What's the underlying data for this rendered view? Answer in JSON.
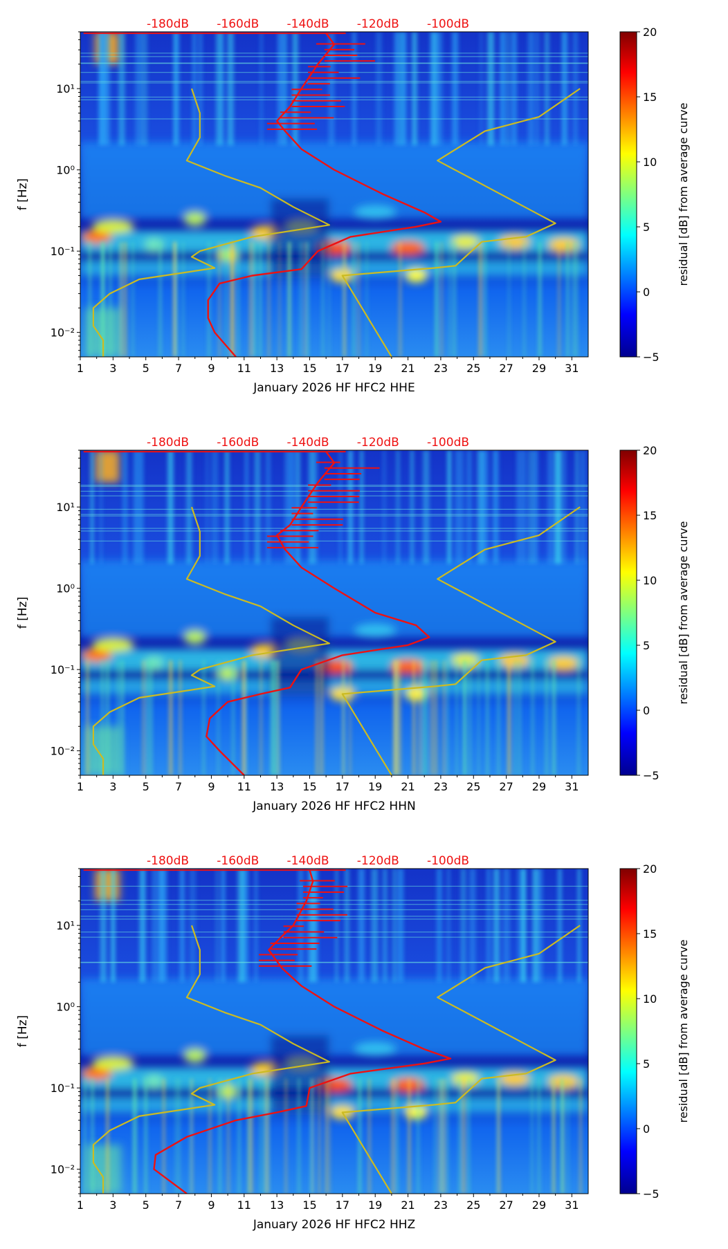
{
  "chart_data": [
    {
      "type": "heatmap",
      "channel": "HHE",
      "title": "",
      "xlabel": "January 2026 HF HFC2  HHE",
      "ylabel": "f [Hz]",
      "x_ticks": [
        1,
        3,
        5,
        7,
        9,
        11,
        13,
        15,
        17,
        19,
        21,
        23,
        25,
        27,
        29,
        31
      ],
      "xlim": [
        1,
        32
      ],
      "y_ticks": [
        0.01,
        0.1,
        1,
        10
      ],
      "y_tick_labels": [
        "10⁻²",
        "10⁻¹",
        "10⁰",
        "10¹"
      ],
      "ylim": [
        0.005,
        50
      ],
      "top_axis_ticks": [
        -180,
        -160,
        -140,
        -120,
        -100
      ],
      "top_axis_labels": [
        "-180dB",
        "-160dB",
        "-140dB",
        "-120dB",
        "-100dB"
      ],
      "colorbar": {
        "label": "residual [dB] from average curve",
        "min": -5,
        "max": 20,
        "ticks": [
          -5,
          0,
          5,
          10,
          15,
          20
        ],
        "tick_labels": [
          "−5",
          "0",
          "5",
          "10",
          "15",
          "20"
        ]
      },
      "series": [
        {
          "name": "average PSD",
          "color": "#ee1111",
          "points": [
            [
              10.5,
              0.005
            ],
            [
              9.2,
              0.01
            ],
            [
              8.8,
              0.015
            ],
            [
              8.8,
              0.025
            ],
            [
              9.5,
              0.04
            ],
            [
              11.5,
              0.05
            ],
            [
              14.5,
              0.06
            ],
            [
              15.5,
              0.1
            ],
            [
              17.5,
              0.15
            ],
            [
              21.5,
              0.2
            ],
            [
              23.0,
              0.23
            ],
            [
              22.0,
              0.3
            ],
            [
              19.5,
              0.5
            ],
            [
              16.5,
              1.0
            ],
            [
              14.5,
              1.8
            ],
            [
              13.5,
              3.0
            ],
            [
              13.0,
              4.0
            ],
            [
              13.8,
              6.0
            ],
            [
              14.5,
              10.0
            ],
            [
              15.5,
              20.0
            ],
            [
              16.5,
              35.0
            ],
            [
              16.0,
              48.0
            ]
          ]
        },
        {
          "name": "NLNM",
          "color": "#ccbb22",
          "points": [
            [
              2.4,
              0.005
            ],
            [
              2.4,
              0.008
            ],
            [
              1.8,
              0.012
            ],
            [
              1.8,
              0.02
            ],
            [
              2.8,
              0.03
            ],
            [
              4.6,
              0.045
            ],
            [
              9.2,
              0.062
            ],
            [
              7.8,
              0.085
            ],
            [
              8.3,
              0.1
            ],
            [
              11.5,
              0.15
            ],
            [
              16.2,
              0.21
            ],
            [
              14.0,
              0.35
            ],
            [
              12.0,
              0.6
            ],
            [
              9.8,
              0.85
            ],
            [
              7.5,
              1.3
            ],
            [
              8.3,
              2.5
            ],
            [
              8.3,
              5.0
            ],
            [
              7.8,
              10.0
            ]
          ]
        },
        {
          "name": "NHNM",
          "color": "#ccbb22",
          "points": [
            [
              20.0,
              0.005
            ],
            [
              17.0,
              0.05
            ],
            [
              22.6,
              0.062
            ],
            [
              23.9,
              0.066
            ],
            [
              25.5,
              0.13
            ],
            [
              28.2,
              0.15
            ],
            [
              30.0,
              0.22
            ],
            [
              22.8,
              1.3
            ],
            [
              25.7,
              3.0
            ],
            [
              29.0,
              4.5
            ],
            [
              31.5,
              10.0
            ]
          ]
        }
      ]
    },
    {
      "type": "heatmap",
      "channel": "HHN",
      "title": "",
      "xlabel": "January 2026 HF HFC2  HHN",
      "ylabel": "f [Hz]",
      "x_ticks": [
        1,
        3,
        5,
        7,
        9,
        11,
        13,
        15,
        17,
        19,
        21,
        23,
        25,
        27,
        29,
        31
      ],
      "xlim": [
        1,
        32
      ],
      "y_ticks": [
        0.01,
        0.1,
        1,
        10
      ],
      "y_tick_labels": [
        "10⁻²",
        "10⁻¹",
        "10⁰",
        "10¹"
      ],
      "ylim": [
        0.005,
        50
      ],
      "top_axis_ticks": [
        -180,
        -160,
        -140,
        -120,
        -100
      ],
      "top_axis_labels": [
        "-180dB",
        "-160dB",
        "-140dB",
        "-120dB",
        "-100dB"
      ],
      "colorbar": {
        "label": "residual [dB] from average curve",
        "min": -5,
        "max": 20,
        "ticks": [
          -5,
          0,
          5,
          10,
          15,
          20
        ],
        "tick_labels": [
          "−5",
          "0",
          "5",
          "10",
          "15",
          "20"
        ]
      },
      "series": [
        {
          "name": "average PSD",
          "color": "#ee1111",
          "points": [
            [
              11.0,
              0.005
            ],
            [
              9.5,
              0.01
            ],
            [
              8.7,
              0.015
            ],
            [
              8.9,
              0.025
            ],
            [
              10.0,
              0.04
            ],
            [
              12.0,
              0.05
            ],
            [
              13.8,
              0.06
            ],
            [
              14.5,
              0.1
            ],
            [
              17.0,
              0.15
            ],
            [
              21.0,
              0.2
            ],
            [
              22.3,
              0.25
            ],
            [
              21.5,
              0.35
            ],
            [
              19.0,
              0.5
            ],
            [
              16.5,
              1.0
            ],
            [
              14.5,
              1.8
            ],
            [
              13.5,
              3.0
            ],
            [
              13.0,
              4.5
            ],
            [
              13.8,
              6.0
            ],
            [
              14.5,
              10.0
            ],
            [
              15.5,
              20.0
            ],
            [
              16.5,
              35.0
            ],
            [
              16.0,
              48.0
            ]
          ]
        },
        {
          "name": "NLNM",
          "color": "#ccbb22",
          "points": [
            [
              2.4,
              0.005
            ],
            [
              2.4,
              0.008
            ],
            [
              1.8,
              0.012
            ],
            [
              1.8,
              0.02
            ],
            [
              2.8,
              0.03
            ],
            [
              4.6,
              0.045
            ],
            [
              9.2,
              0.062
            ],
            [
              7.8,
              0.085
            ],
            [
              8.3,
              0.1
            ],
            [
              11.5,
              0.15
            ],
            [
              16.2,
              0.21
            ],
            [
              14.0,
              0.35
            ],
            [
              12.0,
              0.6
            ],
            [
              9.8,
              0.85
            ],
            [
              7.5,
              1.3
            ],
            [
              8.3,
              2.5
            ],
            [
              8.3,
              5.0
            ],
            [
              7.8,
              10.0
            ]
          ]
        },
        {
          "name": "NHNM",
          "color": "#ccbb22",
          "points": [
            [
              20.0,
              0.005
            ],
            [
              17.0,
              0.05
            ],
            [
              22.6,
              0.062
            ],
            [
              23.9,
              0.066
            ],
            [
              25.5,
              0.13
            ],
            [
              28.2,
              0.15
            ],
            [
              30.0,
              0.22
            ],
            [
              22.8,
              1.3
            ],
            [
              25.7,
              3.0
            ],
            [
              29.0,
              4.5
            ],
            [
              31.5,
              10.0
            ]
          ]
        }
      ]
    },
    {
      "type": "heatmap",
      "channel": "HHZ",
      "title": "",
      "xlabel": "January 2026 HF HFC2  HHZ",
      "ylabel": "f [Hz]",
      "x_ticks": [
        1,
        3,
        5,
        7,
        9,
        11,
        13,
        15,
        17,
        19,
        21,
        23,
        25,
        27,
        29,
        31
      ],
      "xlim": [
        1,
        32
      ],
      "y_ticks": [
        0.01,
        0.1,
        1,
        10
      ],
      "y_tick_labels": [
        "10⁻²",
        "10⁻¹",
        "10⁰",
        "10¹"
      ],
      "ylim": [
        0.005,
        50
      ],
      "top_axis_ticks": [
        -180,
        -160,
        -140,
        -120,
        -100
      ],
      "top_axis_labels": [
        "-180dB",
        "-160dB",
        "-140dB",
        "-120dB",
        "-100dB"
      ],
      "colorbar": {
        "label": "residual [dB] from average curve",
        "min": -5,
        "max": 20,
        "ticks": [
          -5,
          0,
          5,
          10,
          15,
          20
        ],
        "tick_labels": [
          "−5",
          "0",
          "5",
          "10",
          "15",
          "20"
        ]
      },
      "series": [
        {
          "name": "average PSD",
          "color": "#ee1111",
          "points": [
            [
              7.5,
              0.005
            ],
            [
              5.5,
              0.01
            ],
            [
              5.6,
              0.015
            ],
            [
              7.5,
              0.025
            ],
            [
              10.5,
              0.04
            ],
            [
              13.0,
              0.05
            ],
            [
              14.8,
              0.06
            ],
            [
              15.0,
              0.1
            ],
            [
              17.5,
              0.15
            ],
            [
              22.0,
              0.2
            ],
            [
              23.6,
              0.23
            ],
            [
              22.0,
              0.3
            ],
            [
              19.5,
              0.5
            ],
            [
              16.5,
              1.0
            ],
            [
              14.5,
              1.8
            ],
            [
              13.3,
              3.0
            ],
            [
              12.5,
              5.0
            ],
            [
              13.2,
              7.0
            ],
            [
              14.0,
              10.0
            ],
            [
              14.8,
              20.0
            ],
            [
              15.2,
              35.0
            ],
            [
              15.0,
              48.0
            ]
          ]
        },
        {
          "name": "NLNM",
          "color": "#ccbb22",
          "points": [
            [
              2.4,
              0.005
            ],
            [
              2.4,
              0.008
            ],
            [
              1.8,
              0.012
            ],
            [
              1.8,
              0.02
            ],
            [
              2.8,
              0.03
            ],
            [
              4.6,
              0.045
            ],
            [
              9.2,
              0.062
            ],
            [
              7.8,
              0.085
            ],
            [
              8.3,
              0.1
            ],
            [
              11.5,
              0.15
            ],
            [
              16.2,
              0.21
            ],
            [
              14.0,
              0.35
            ],
            [
              12.0,
              0.6
            ],
            [
              9.8,
              0.85
            ],
            [
              7.5,
              1.3
            ],
            [
              8.3,
              2.5
            ],
            [
              8.3,
              5.0
            ],
            [
              7.8,
              10.0
            ]
          ]
        },
        {
          "name": "NHNM",
          "color": "#ccbb22",
          "points": [
            [
              20.0,
              0.005
            ],
            [
              17.0,
              0.05
            ],
            [
              22.6,
              0.062
            ],
            [
              23.9,
              0.066
            ],
            [
              25.5,
              0.13
            ],
            [
              28.2,
              0.15
            ],
            [
              30.0,
              0.22
            ],
            [
              22.8,
              1.3
            ],
            [
              25.7,
              3.0
            ],
            [
              29.0,
              4.5
            ],
            [
              31.5,
              10.0
            ]
          ]
        }
      ]
    }
  ],
  "colors": {
    "axis": "#000000",
    "top_labels": "#ee1111",
    "background": "#ffffff"
  }
}
